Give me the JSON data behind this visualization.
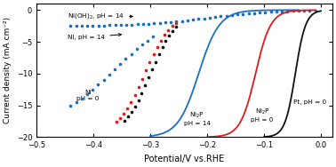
{
  "title": "",
  "xlabel": "Potential/V vs.RHE",
  "ylabel": "Current density (mA cm⁻²)",
  "xlim": [
    -0.5,
    0.02
  ],
  "ylim": [
    -20,
    1
  ],
  "xticks": [
    -0.5,
    -0.4,
    -0.3,
    -0.2,
    -0.1,
    0.0
  ],
  "yticks": [
    0,
    -5,
    -10,
    -15,
    -20
  ],
  "background_color": "#ffffff",
  "ni_ph0_color": "#1a6ec4",
  "ni_oh_ph14_color": "#1a6ec4",
  "ni_ph14_color": "#e01a1a",
  "ni2p_ph14_dots_color": "#111111",
  "ni2p_ph14_solid_color": "#1a6ec4",
  "ni2p_ph0_color": "#e01a1a",
  "pt_ph0_color": "#111111"
}
